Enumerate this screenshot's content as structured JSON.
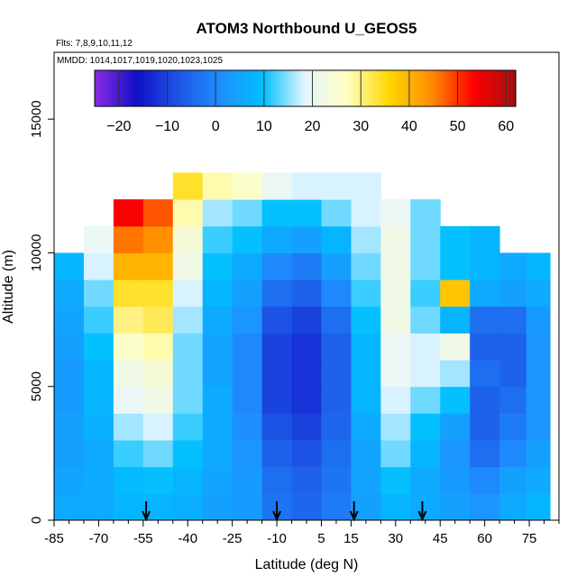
{
  "chart_data": {
    "type": "heatmap",
    "title": "ATOM3 Northbound U_GEOS5",
    "flights_note": "Flts: 7,8,9,10,11,12",
    "dates_note": "MMDD: 1014,1017,1019,1020,1023,1025",
    "xlabel": "Latitude (deg N)",
    "ylabel": "Altitude (m)",
    "xlim": [
      -85,
      85
    ],
    "ylim": [
      0,
      17500
    ],
    "x_ticks": [
      -85,
      -70,
      -55,
      -40,
      -25,
      -10,
      5,
      15,
      30,
      45,
      60,
      75
    ],
    "x_minor_ticks": [
      -80,
      -75,
      -65,
      -60,
      -50,
      -45,
      -35,
      -30,
      -20,
      -15,
      -5,
      0,
      10,
      20,
      25,
      35,
      40,
      50,
      55,
      65,
      70,
      80,
      85
    ],
    "y_ticks": [
      0,
      5000,
      10000,
      15000
    ],
    "colorbar": {
      "range": [
        -25,
        62
      ],
      "ticks": [
        -20,
        -10,
        0,
        10,
        20,
        30,
        40,
        50,
        60
      ],
      "colors": [
        "#8a2be2",
        "#1010c8",
        "#1e56e6",
        "#1e90ff",
        "#00bfff",
        "#e6f5ff",
        "#ffffc0",
        "#ffd700",
        "#ff8c00",
        "#ff0000",
        "#a01010"
      ]
    },
    "arrows_at_latitude": [
      -54,
      -10,
      16,
      39
    ],
    "grid": false,
    "cross_section": {
      "latitude_centers": [
        -80,
        -70,
        -60,
        -50,
        -40,
        -30,
        -20,
        -10,
        0,
        10,
        20,
        30,
        40,
        50,
        60,
        70,
        78
      ],
      "altitude_centers": [
        500,
        1500,
        2500,
        3500,
        4500,
        5500,
        6500,
        7500,
        8500,
        9500,
        10500,
        11500,
        12500
      ],
      "u_wind": [
        [
          6,
          6,
          8,
          8,
          7,
          4,
          3,
          -3,
          -5,
          -2,
          4,
          8,
          6,
          4,
          2,
          6,
          8
        ],
        [
          5,
          6,
          9,
          10,
          8,
          5,
          3,
          -4,
          -6,
          -3,
          5,
          10,
          6,
          3,
          0,
          4,
          6
        ],
        [
          4,
          6,
          12,
          14,
          10,
          6,
          2,
          -6,
          -8,
          -4,
          5,
          14,
          8,
          2,
          -4,
          0,
          4
        ],
        [
          4,
          7,
          16,
          18,
          12,
          6,
          1,
          -8,
          -10,
          -5,
          6,
          16,
          10,
          4,
          -6,
          -2,
          2
        ],
        [
          3,
          8,
          20,
          22,
          14,
          6,
          0,
          -10,
          -12,
          -6,
          8,
          18,
          14,
          10,
          -6,
          -4,
          2
        ],
        [
          3,
          8,
          22,
          24,
          14,
          5,
          0,
          -10,
          -12,
          -6,
          8,
          20,
          18,
          16,
          -4,
          -6,
          2
        ],
        [
          4,
          10,
          26,
          28,
          14,
          5,
          0,
          -10,
          -12,
          -6,
          8,
          20,
          18,
          22,
          -6,
          -6,
          2
        ],
        [
          5,
          12,
          30,
          32,
          16,
          6,
          2,
          -8,
          -10,
          -4,
          10,
          22,
          14,
          8,
          -4,
          -4,
          3
        ],
        [
          6,
          14,
          34,
          34,
          18,
          8,
          4,
          -4,
          -6,
          0,
          12,
          22,
          12,
          38,
          6,
          4,
          6
        ],
        [
          8,
          18,
          40,
          40,
          22,
          10,
          6,
          0,
          -2,
          4,
          14,
          22,
          14,
          10,
          8,
          6,
          8
        ],
        [
          null,
          20,
          46,
          44,
          24,
          12,
          10,
          6,
          4,
          8,
          16,
          22,
          14,
          10,
          8,
          null,
          null
        ],
        [
          null,
          null,
          54,
          48,
          28,
          16,
          14,
          10,
          10,
          14,
          18,
          20,
          14,
          null,
          null,
          null,
          null
        ],
        [
          null,
          null,
          null,
          null,
          34,
          28,
          26,
          20,
          18,
          18,
          18,
          null,
          null,
          null,
          null,
          null,
          null
        ]
      ]
    }
  }
}
